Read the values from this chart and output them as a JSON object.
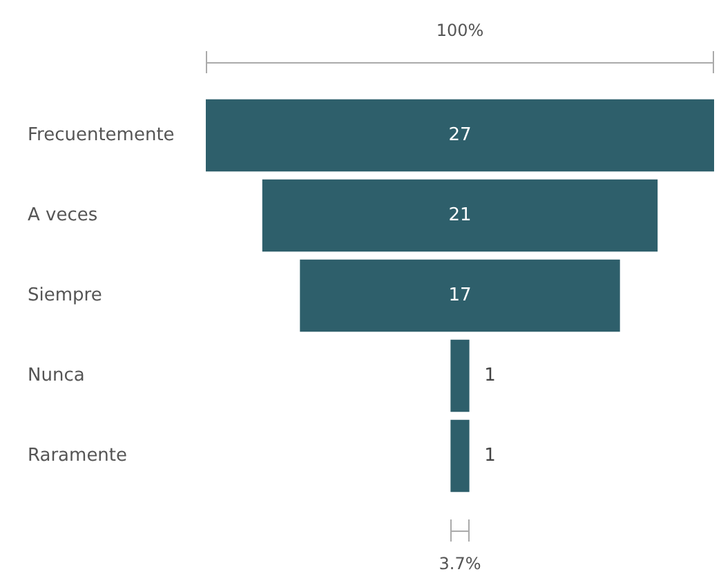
{
  "chart_data": {
    "type": "other",
    "categories": [
      "Frecuentemente",
      "A veces",
      "Siempre",
      "Nunca",
      "Raramente"
    ],
    "values": [
      27,
      21,
      17,
      1,
      1
    ],
    "color": "#2e5f6b",
    "data_labels": true,
    "annotations": [
      "100%",
      "3.7%"
    ]
  }
}
